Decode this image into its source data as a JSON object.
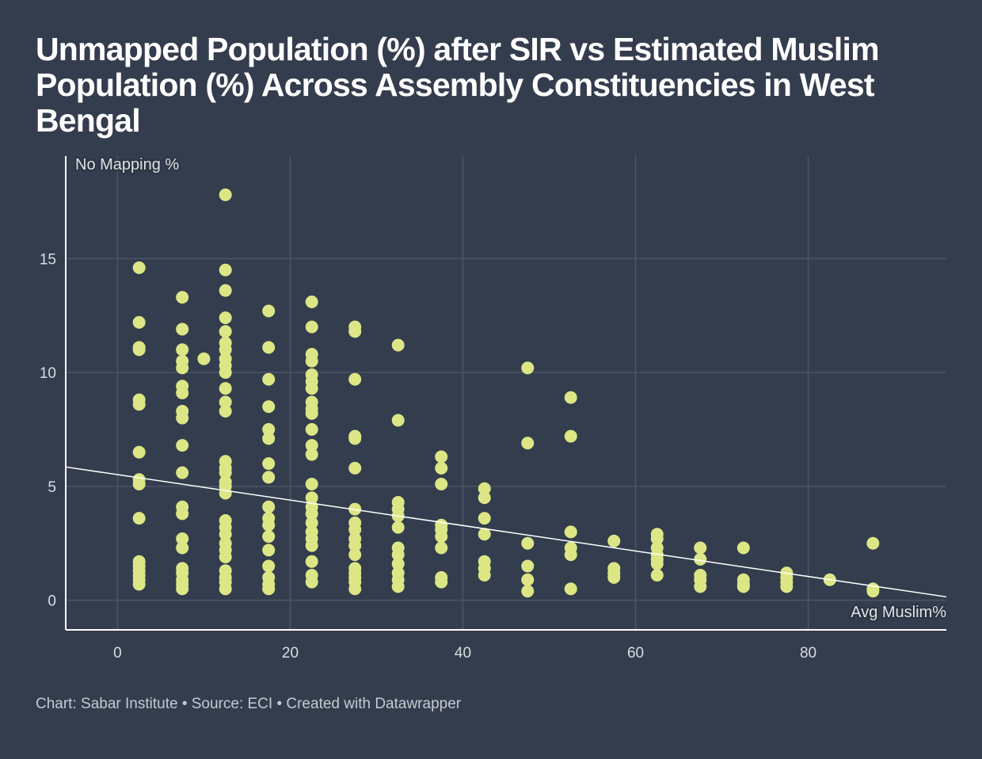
{
  "title": "Unmapped Population (%) after SIR vs Estimated Muslim Population (%) Across Assembly Constituencies in West Bengal",
  "footer": {
    "text": "Chart: Sabar Institute • Source: ECI • Created with Datawrapper"
  },
  "colors": {
    "background": "#333d4e",
    "point": "#dce685",
    "gridline": "#4d5666",
    "trendline": "#ffffff",
    "axis": "#ffffff"
  },
  "chart_data": {
    "type": "scatter",
    "title": "Unmapped Population (%) after SIR vs Estimated Muslim Population (%) Across Assembly Constituencies in West Bengal",
    "xlabel": "Avg Muslim%",
    "ylabel": "No Mapping %",
    "xlim": [
      -6,
      96
    ],
    "ylim": [
      -1.3,
      19.5
    ],
    "xticks": [
      0,
      20,
      40,
      60,
      80
    ],
    "yticks": [
      0,
      5,
      10,
      15
    ],
    "grid": true,
    "legend": "none",
    "trendline": {
      "x": [
        -6,
        96
      ],
      "y": [
        5.85,
        0.15
      ]
    },
    "points": [
      {
        "x": 2.5,
        "y": 14.6
      },
      {
        "x": 2.5,
        "y": 12.2
      },
      {
        "x": 2.5,
        "y": 11.1
      },
      {
        "x": 2.5,
        "y": 11.0
      },
      {
        "x": 2.5,
        "y": 8.8
      },
      {
        "x": 2.5,
        "y": 8.6
      },
      {
        "x": 2.5,
        "y": 6.5
      },
      {
        "x": 2.5,
        "y": 5.3
      },
      {
        "x": 2.5,
        "y": 5.1
      },
      {
        "x": 2.5,
        "y": 3.6
      },
      {
        "x": 2.5,
        "y": 1.7
      },
      {
        "x": 2.5,
        "y": 1.5
      },
      {
        "x": 2.5,
        "y": 1.3
      },
      {
        "x": 2.5,
        "y": 1.1
      },
      {
        "x": 2.5,
        "y": 0.9
      },
      {
        "x": 2.5,
        "y": 0.7
      },
      {
        "x": 7.5,
        "y": 13.3
      },
      {
        "x": 7.5,
        "y": 11.9
      },
      {
        "x": 7.5,
        "y": 11.0
      },
      {
        "x": 7.5,
        "y": 10.5
      },
      {
        "x": 7.5,
        "y": 10.2
      },
      {
        "x": 7.5,
        "y": 9.4
      },
      {
        "x": 7.5,
        "y": 9.1
      },
      {
        "x": 7.5,
        "y": 8.3
      },
      {
        "x": 7.5,
        "y": 8.0
      },
      {
        "x": 7.5,
        "y": 6.8
      },
      {
        "x": 7.5,
        "y": 5.6
      },
      {
        "x": 7.5,
        "y": 4.1
      },
      {
        "x": 7.5,
        "y": 3.8
      },
      {
        "x": 7.5,
        "y": 2.7
      },
      {
        "x": 7.5,
        "y": 2.3
      },
      {
        "x": 7.5,
        "y": 1.4
      },
      {
        "x": 7.5,
        "y": 1.2
      },
      {
        "x": 7.5,
        "y": 0.9
      },
      {
        "x": 7.5,
        "y": 0.7
      },
      {
        "x": 7.5,
        "y": 0.5
      },
      {
        "x": 10,
        "y": 10.6
      },
      {
        "x": 12.5,
        "y": 17.8
      },
      {
        "x": 12.5,
        "y": 14.5
      },
      {
        "x": 12.5,
        "y": 13.6
      },
      {
        "x": 12.5,
        "y": 12.4
      },
      {
        "x": 12.5,
        "y": 11.8
      },
      {
        "x": 12.5,
        "y": 11.3
      },
      {
        "x": 12.5,
        "y": 11.0
      },
      {
        "x": 12.5,
        "y": 10.6
      },
      {
        "x": 12.5,
        "y": 10.3
      },
      {
        "x": 12.5,
        "y": 10.0
      },
      {
        "x": 12.5,
        "y": 9.3
      },
      {
        "x": 12.5,
        "y": 8.7
      },
      {
        "x": 12.5,
        "y": 8.3
      },
      {
        "x": 12.5,
        "y": 6.1
      },
      {
        "x": 12.5,
        "y": 5.8
      },
      {
        "x": 12.5,
        "y": 5.6
      },
      {
        "x": 12.5,
        "y": 5.2
      },
      {
        "x": 12.5,
        "y": 5.0
      },
      {
        "x": 12.5,
        "y": 4.7
      },
      {
        "x": 12.5,
        "y": 3.5
      },
      {
        "x": 12.5,
        "y": 3.2
      },
      {
        "x": 12.5,
        "y": 2.9
      },
      {
        "x": 12.5,
        "y": 2.5
      },
      {
        "x": 12.5,
        "y": 2.2
      },
      {
        "x": 12.5,
        "y": 1.9
      },
      {
        "x": 12.5,
        "y": 1.3
      },
      {
        "x": 12.5,
        "y": 1.0
      },
      {
        "x": 12.5,
        "y": 0.8
      },
      {
        "x": 12.5,
        "y": 0.5
      },
      {
        "x": 17.5,
        "y": 12.7
      },
      {
        "x": 17.5,
        "y": 11.1
      },
      {
        "x": 17.5,
        "y": 9.7
      },
      {
        "x": 17.5,
        "y": 8.5
      },
      {
        "x": 17.5,
        "y": 7.5
      },
      {
        "x": 17.5,
        "y": 7.1
      },
      {
        "x": 17.5,
        "y": 6.0
      },
      {
        "x": 17.5,
        "y": 5.4
      },
      {
        "x": 17.5,
        "y": 4.1
      },
      {
        "x": 17.5,
        "y": 3.6
      },
      {
        "x": 17.5,
        "y": 3.3
      },
      {
        "x": 17.5,
        "y": 2.8
      },
      {
        "x": 17.5,
        "y": 2.2
      },
      {
        "x": 17.5,
        "y": 1.5
      },
      {
        "x": 17.5,
        "y": 1.0
      },
      {
        "x": 17.5,
        "y": 0.7
      },
      {
        "x": 17.5,
        "y": 0.5
      },
      {
        "x": 22.5,
        "y": 13.1
      },
      {
        "x": 22.5,
        "y": 12.0
      },
      {
        "x": 22.5,
        "y": 10.8
      },
      {
        "x": 22.5,
        "y": 10.5
      },
      {
        "x": 22.5,
        "y": 9.9
      },
      {
        "x": 22.5,
        "y": 9.6
      },
      {
        "x": 22.5,
        "y": 9.3
      },
      {
        "x": 22.5,
        "y": 8.7
      },
      {
        "x": 22.5,
        "y": 8.4
      },
      {
        "x": 22.5,
        "y": 8.2
      },
      {
        "x": 22.5,
        "y": 7.5
      },
      {
        "x": 22.5,
        "y": 6.8
      },
      {
        "x": 22.5,
        "y": 6.4
      },
      {
        "x": 22.5,
        "y": 5.1
      },
      {
        "x": 22.5,
        "y": 4.5
      },
      {
        "x": 22.5,
        "y": 4.1
      },
      {
        "x": 22.5,
        "y": 3.8
      },
      {
        "x": 22.5,
        "y": 3.4
      },
      {
        "x": 22.5,
        "y": 3.0
      },
      {
        "x": 22.5,
        "y": 2.7
      },
      {
        "x": 22.5,
        "y": 2.4
      },
      {
        "x": 22.5,
        "y": 1.7
      },
      {
        "x": 22.5,
        "y": 1.1
      },
      {
        "x": 22.5,
        "y": 0.8
      },
      {
        "x": 27.5,
        "y": 12.0
      },
      {
        "x": 27.5,
        "y": 11.8
      },
      {
        "x": 27.5,
        "y": 9.7
      },
      {
        "x": 27.5,
        "y": 7.2
      },
      {
        "x": 27.5,
        "y": 7.1
      },
      {
        "x": 27.5,
        "y": 5.8
      },
      {
        "x": 27.5,
        "y": 4.0
      },
      {
        "x": 27.5,
        "y": 3.4
      },
      {
        "x": 27.5,
        "y": 3.1
      },
      {
        "x": 27.5,
        "y": 2.7
      },
      {
        "x": 27.5,
        "y": 2.4
      },
      {
        "x": 27.5,
        "y": 2.0
      },
      {
        "x": 27.5,
        "y": 1.4
      },
      {
        "x": 27.5,
        "y": 1.2
      },
      {
        "x": 27.5,
        "y": 1.0
      },
      {
        "x": 27.5,
        "y": 0.8
      },
      {
        "x": 27.5,
        "y": 0.5
      },
      {
        "x": 32.5,
        "y": 11.2
      },
      {
        "x": 32.5,
        "y": 7.9
      },
      {
        "x": 32.5,
        "y": 4.3
      },
      {
        "x": 32.5,
        "y": 4.0
      },
      {
        "x": 32.5,
        "y": 3.7
      },
      {
        "x": 32.5,
        "y": 3.2
      },
      {
        "x": 32.5,
        "y": 2.3
      },
      {
        "x": 32.5,
        "y": 2.0
      },
      {
        "x": 32.5,
        "y": 1.6
      },
      {
        "x": 32.5,
        "y": 1.2
      },
      {
        "x": 32.5,
        "y": 0.9
      },
      {
        "x": 32.5,
        "y": 0.6
      },
      {
        "x": 37.5,
        "y": 6.3
      },
      {
        "x": 37.5,
        "y": 5.8
      },
      {
        "x": 37.5,
        "y": 5.1
      },
      {
        "x": 37.5,
        "y": 3.3
      },
      {
        "x": 37.5,
        "y": 3.1
      },
      {
        "x": 37.5,
        "y": 2.8
      },
      {
        "x": 37.5,
        "y": 2.3
      },
      {
        "x": 37.5,
        "y": 1.0
      },
      {
        "x": 37.5,
        "y": 0.8
      },
      {
        "x": 42.5,
        "y": 4.9
      },
      {
        "x": 42.5,
        "y": 4.5
      },
      {
        "x": 42.5,
        "y": 3.6
      },
      {
        "x": 42.5,
        "y": 2.9
      },
      {
        "x": 42.5,
        "y": 1.7
      },
      {
        "x": 42.5,
        "y": 1.4
      },
      {
        "x": 42.5,
        "y": 1.1
      },
      {
        "x": 47.5,
        "y": 10.2
      },
      {
        "x": 47.5,
        "y": 6.9
      },
      {
        "x": 47.5,
        "y": 2.5
      },
      {
        "x": 47.5,
        "y": 1.5
      },
      {
        "x": 47.5,
        "y": 0.9
      },
      {
        "x": 47.5,
        "y": 0.4
      },
      {
        "x": 52.5,
        "y": 8.9
      },
      {
        "x": 52.5,
        "y": 7.2
      },
      {
        "x": 52.5,
        "y": 3.0
      },
      {
        "x": 52.5,
        "y": 2.3
      },
      {
        "x": 52.5,
        "y": 2.0
      },
      {
        "x": 52.5,
        "y": 0.5
      },
      {
        "x": 57.5,
        "y": 2.6
      },
      {
        "x": 57.5,
        "y": 1.4
      },
      {
        "x": 57.5,
        "y": 1.2
      },
      {
        "x": 57.5,
        "y": 1.0
      },
      {
        "x": 62.5,
        "y": 2.9
      },
      {
        "x": 62.5,
        "y": 2.7
      },
      {
        "x": 62.5,
        "y": 2.3
      },
      {
        "x": 62.5,
        "y": 2.0
      },
      {
        "x": 62.5,
        "y": 1.8
      },
      {
        "x": 62.5,
        "y": 1.6
      },
      {
        "x": 62.5,
        "y": 1.1
      },
      {
        "x": 67.5,
        "y": 2.3
      },
      {
        "x": 67.5,
        "y": 1.8
      },
      {
        "x": 67.5,
        "y": 1.1
      },
      {
        "x": 67.5,
        "y": 0.9
      },
      {
        "x": 67.5,
        "y": 0.6
      },
      {
        "x": 72.5,
        "y": 2.3
      },
      {
        "x": 72.5,
        "y": 0.9
      },
      {
        "x": 72.5,
        "y": 0.7
      },
      {
        "x": 72.5,
        "y": 0.6
      },
      {
        "x": 77.5,
        "y": 1.2
      },
      {
        "x": 77.5,
        "y": 1.0
      },
      {
        "x": 77.5,
        "y": 0.8
      },
      {
        "x": 77.5,
        "y": 0.6
      },
      {
        "x": 82.5,
        "y": 0.9
      },
      {
        "x": 87.5,
        "y": 2.5
      },
      {
        "x": 87.5,
        "y": 0.5
      },
      {
        "x": 87.5,
        "y": 0.4
      }
    ]
  }
}
